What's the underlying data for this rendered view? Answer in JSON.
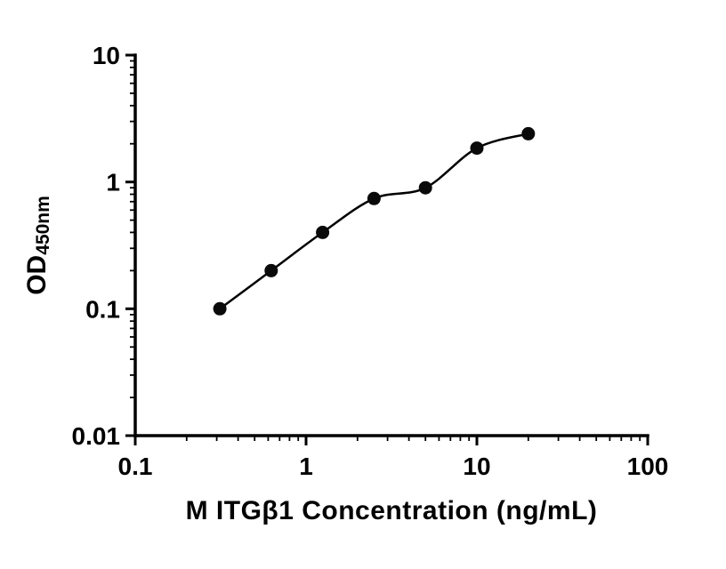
{
  "figure": {
    "background": "#ffffff"
  },
  "chart_data": {
    "type": "scatter",
    "title": "",
    "xlabel": "M ITGβ1 Concentration (ng/mL)",
    "ylabel": "OD",
    "ylabel_sub": "450nm",
    "x_scale": "log10",
    "y_scale": "log10",
    "xlim": [
      0.1,
      100
    ],
    "ylim": [
      0.01,
      10
    ],
    "x_ticks": [
      0.1,
      1,
      10,
      100
    ],
    "x_tick_labels": [
      "0.1",
      "1",
      "10",
      "100"
    ],
    "y_ticks": [
      0.01,
      0.1,
      1,
      10
    ],
    "y_tick_labels": [
      "0.01",
      "0.1",
      "1",
      "10"
    ],
    "grid": false,
    "legend": false,
    "series": [
      {
        "x": [
          0.313,
          0.625,
          1.25,
          2.5,
          5,
          10,
          20
        ],
        "y": [
          0.1,
          0.2,
          0.4,
          0.74,
          0.9,
          1.85,
          2.4
        ],
        "marker": "circle",
        "marker_color": "#0a0a0a",
        "line": "smooth-fit",
        "line_color": "#000000"
      }
    ]
  },
  "colors": {
    "axis": "#000000",
    "text": "#000000",
    "background": "#ffffff"
  }
}
